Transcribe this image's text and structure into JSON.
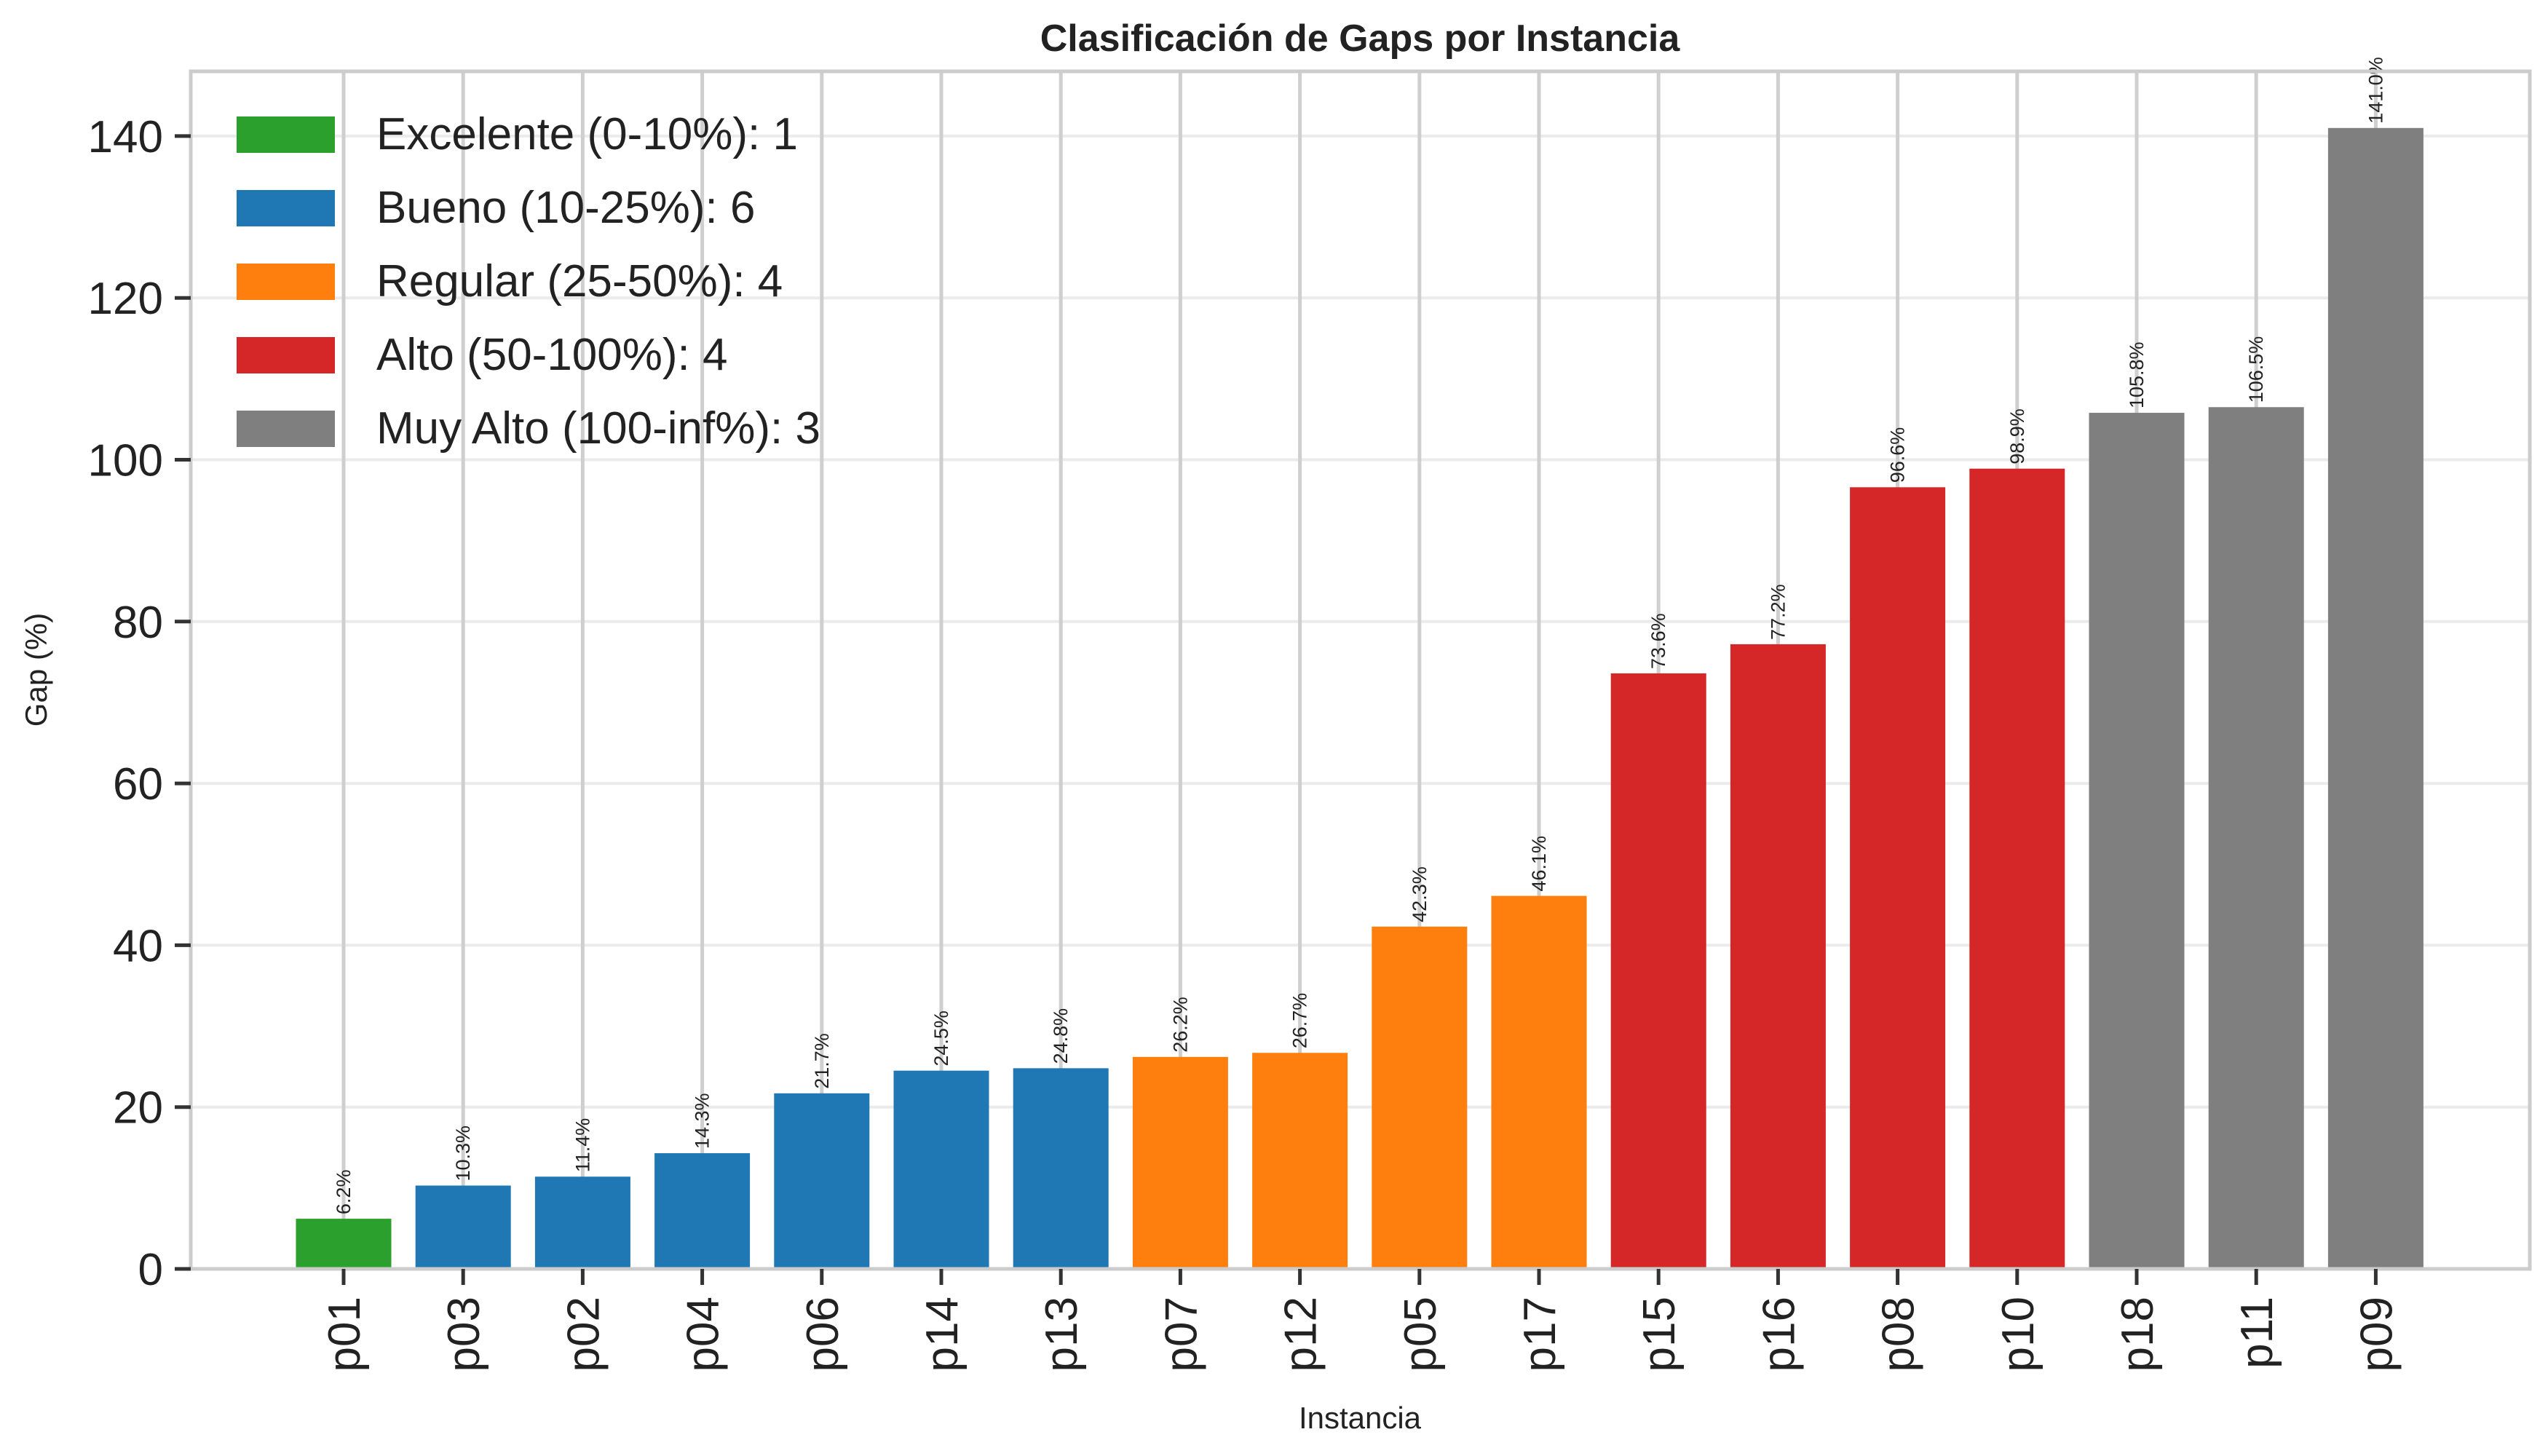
{
  "chart_data": {
    "type": "bar",
    "title": "Clasificación de Gaps por Instancia",
    "xlabel": "Instancia",
    "ylabel": "Gap (%)",
    "ylim": [
      0,
      148
    ],
    "yticks": [
      0,
      20,
      40,
      60,
      80,
      100,
      120,
      140
    ],
    "grid": true,
    "legend_position": "upper-left",
    "categories": [
      "p01",
      "p03",
      "p02",
      "p04",
      "p06",
      "p14",
      "p13",
      "p07",
      "p12",
      "p05",
      "p17",
      "p15",
      "p16",
      "p08",
      "p10",
      "p18",
      "p11",
      "p09"
    ],
    "values": [
      6.2,
      10.3,
      11.4,
      14.3,
      21.7,
      24.5,
      24.8,
      26.2,
      26.7,
      42.3,
      46.1,
      73.6,
      77.2,
      96.6,
      98.9,
      105.8,
      106.5,
      141.0
    ],
    "value_labels": [
      "6.2%",
      "10.3%",
      "11.4%",
      "14.3%",
      "21.7%",
      "24.5%",
      "24.8%",
      "26.2%",
      "26.7%",
      "42.3%",
      "46.1%",
      "73.6%",
      "77.2%",
      "96.6%",
      "98.9%",
      "105.8%",
      "106.5%",
      "141.0%"
    ],
    "bar_class": [
      0,
      1,
      1,
      1,
      1,
      1,
      1,
      2,
      2,
      2,
      2,
      3,
      3,
      3,
      3,
      4,
      4,
      4
    ],
    "classes": [
      {
        "label": "Excelente (0-10%): 1",
        "color": "#2ca02c"
      },
      {
        "label": "Bueno (10-25%): 6",
        "color": "#1f77b4"
      },
      {
        "label": "Regular (25-50%): 4",
        "color": "#ff7f0e"
      },
      {
        "label": "Alto (50-100%): 4",
        "color": "#d62728"
      },
      {
        "label": "Muy Alto (100-inf%): 3",
        "color": "#7f7f7f"
      }
    ]
  }
}
